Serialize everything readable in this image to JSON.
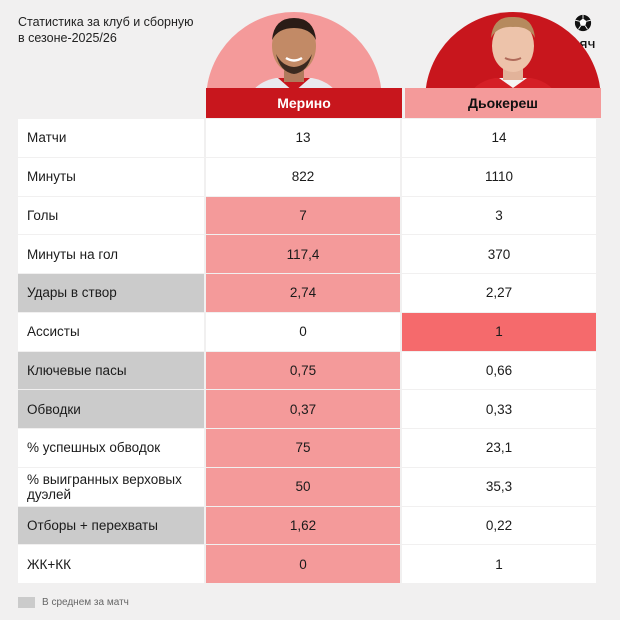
{
  "header": {
    "title_line1": "Статистика за клуб и сборную",
    "title_line2": "в сезоне-2025/26",
    "logo_text": "МЯЧ"
  },
  "players": [
    {
      "name": "Мерино",
      "color": "#c8161d"
    },
    {
      "name": "Дьокереш",
      "color": "#f49a9a"
    }
  ],
  "colors": {
    "accent_red": "#c8161d",
    "highlight_pink": "#f49a9a",
    "highlight_strong": "#f56a6c",
    "per_match_grey": "#cbcbcb",
    "background": "#f1f0f0"
  },
  "rows": [
    {
      "label": "Матчи",
      "v1": "13",
      "v2": "14",
      "per_match": false,
      "hl1": "",
      "hl2": ""
    },
    {
      "label": "Минуты",
      "v1": "822",
      "v2": "1110",
      "per_match": false,
      "hl1": "",
      "hl2": ""
    },
    {
      "label": "Голы",
      "v1": "7",
      "v2": "3",
      "per_match": false,
      "hl1": "pink",
      "hl2": ""
    },
    {
      "label": "Минуты на гол",
      "v1": "117,4",
      "v2": "370",
      "per_match": false,
      "hl1": "pink",
      "hl2": ""
    },
    {
      "label": "Удары в створ",
      "v1": "2,74",
      "v2": "2,27",
      "per_match": true,
      "hl1": "pink",
      "hl2": ""
    },
    {
      "label": "Ассисты",
      "v1": "0",
      "v2": "1",
      "per_match": false,
      "hl1": "",
      "hl2": "red"
    },
    {
      "label": "Ключевые пасы",
      "v1": "0,75",
      "v2": "0,66",
      "per_match": true,
      "hl1": "pink",
      "hl2": ""
    },
    {
      "label": "Обводки",
      "v1": "0,37",
      "v2": "0,33",
      "per_match": true,
      "hl1": "pink",
      "hl2": ""
    },
    {
      "label": "% успешных обводок",
      "v1": "75",
      "v2": "23,1",
      "per_match": false,
      "hl1": "pink",
      "hl2": ""
    },
    {
      "label": "% выигранных верховых дуэлей",
      "v1": "50",
      "v2": "35,3",
      "per_match": false,
      "hl1": "pink",
      "hl2": ""
    },
    {
      "label": "Отборы + перехваты",
      "v1": "1,62",
      "v2": "0,22",
      "per_match": true,
      "hl1": "pink",
      "hl2": ""
    },
    {
      "label": "ЖК+КК",
      "v1": "0",
      "v2": "1",
      "per_match": false,
      "hl1": "pink",
      "hl2": ""
    }
  ],
  "legend": {
    "text": "В среднем за матч",
    "icon": "grey-swatch"
  }
}
